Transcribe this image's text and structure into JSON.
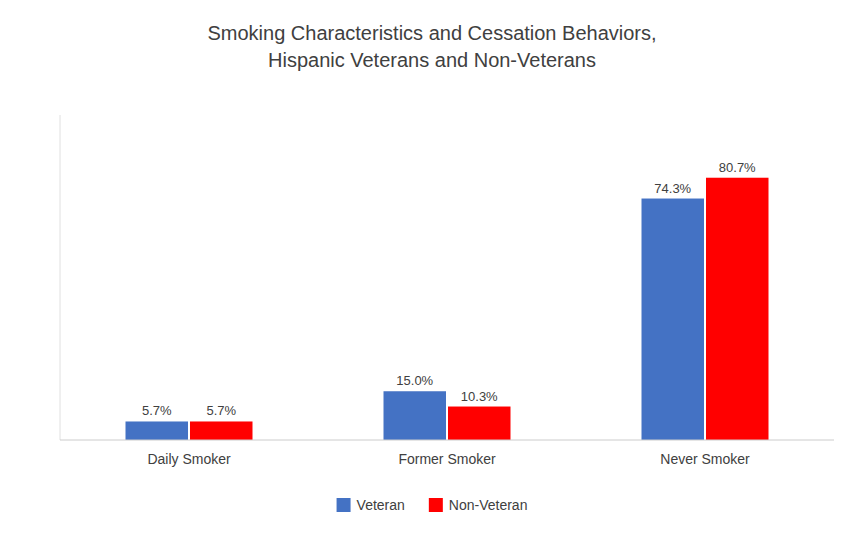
{
  "chart_data": {
    "type": "bar",
    "title": "Smoking Characteristics and Cessation Behaviors,\nHispanic Veterans and Non-Veterans",
    "categories": [
      "Daily Smoker",
      "Former Smoker",
      "Never Smoker"
    ],
    "series": [
      {
        "name": "Veteran",
        "color": "#4472C4",
        "values": [
          5.7,
          15.0,
          74.3
        ],
        "value_labels": [
          "5.7%",
          "15.0%",
          "74.3%"
        ]
      },
      {
        "name": "Non-Veteran",
        "color": "#FF0000",
        "values": [
          5.7,
          10.3,
          80.7
        ],
        "value_labels": [
          "5.7%",
          "10.3%",
          "80.7%"
        ]
      }
    ],
    "ylim": [
      0,
      100
    ],
    "yticks": [],
    "grid": false,
    "legend": "bottom",
    "data_labels": true,
    "tick_labels": "x"
  }
}
